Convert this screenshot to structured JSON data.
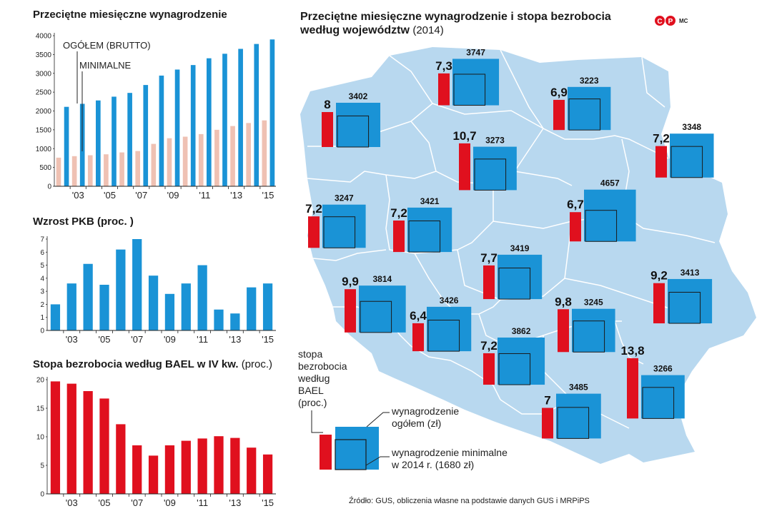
{
  "titles": {
    "wages": "Przeciętne miesięczne wynagrodzenie",
    "gdp": "Wzrost PKB (proc. )",
    "unemp_main": "Stopa bezrobocia według BAEL w IV kw.",
    "unemp_paren": "(proc.)",
    "map_line1": "Przeciętne miesięczne wynagrodzenie i stopa bezrobocia",
    "map_line2": "według województw",
    "map_year": "(2014)"
  },
  "logo": {
    "letters": [
      "C",
      "P"
    ],
    "author": "MC"
  },
  "colors": {
    "blue": "#1a93d6",
    "pink": "#efc1b3",
    "red": "#e0101e",
    "map": "#b8d8ef"
  },
  "annotations": {
    "gross": "OGÓŁEM (BRUTTO)",
    "minimal": "MINIMALNE"
  },
  "legend": {
    "rate": [
      "stopa",
      "bezrobocia",
      "według",
      "BAEL",
      "(proc.)"
    ],
    "gross": [
      "wynagrodzenie",
      "ogółem (zł)"
    ],
    "minimal": [
      "wynagrodzenie minimalne",
      "w 2014 r. (1680 zł)"
    ]
  },
  "source": "Źródło: GUS, obliczenia własne na podstawie danych GUS i MRPiPS",
  "chart_data": [
    {
      "type": "bar",
      "title": "Przeciętne miesięczne wynagrodzenie",
      "categories": [
        "2002",
        "2003",
        "2004",
        "2005",
        "2006",
        "2007",
        "2008",
        "2009",
        "2010",
        "2011",
        "2012",
        "2013",
        "2014",
        "2015"
      ],
      "series": [
        {
          "name": "OGÓŁEM (BRUTTO)",
          "values": [
            2110,
            2190,
            2280,
            2380,
            2480,
            2690,
            2940,
            3100,
            3220,
            3400,
            3520,
            3650,
            3780,
            3900
          ]
        },
        {
          "name": "MINIMALNE",
          "values": [
            760,
            800,
            824,
            849,
            899,
            936,
            1126,
            1276,
            1317,
            1386,
            1500,
            1600,
            1680,
            1750
          ]
        }
      ],
      "ylim": [
        0,
        4000
      ],
      "yticks": [
        "0",
        "500",
        "1000",
        "1500",
        "2000",
        "2500",
        "3000",
        "3500",
        "4000"
      ],
      "xticks": [
        "'03",
        "'05",
        "'07",
        "'09",
        "'11",
        "'13",
        "'15"
      ]
    },
    {
      "type": "bar",
      "title": "Wzrost PKB (proc. )",
      "categories": [
        "2002",
        "2003",
        "2004",
        "2005",
        "2006",
        "2007",
        "2008",
        "2009",
        "2010",
        "2011",
        "2012",
        "2013",
        "2014",
        "2015"
      ],
      "values": [
        2.0,
        3.6,
        5.1,
        3.5,
        6.2,
        7.0,
        4.2,
        2.8,
        3.6,
        5.0,
        1.6,
        1.3,
        3.3,
        3.6
      ],
      "ylim": [
        0,
        7
      ],
      "yticks": [
        "0",
        "1",
        "2",
        "3",
        "4",
        "5",
        "6",
        "7"
      ],
      "xticks": [
        "'03",
        "'05",
        "'07",
        "'09",
        "'11",
        "'13",
        "'15"
      ]
    },
    {
      "type": "bar",
      "title": "Stopa bezrobocia według BAEL w IV kw. (proc.)",
      "categories": [
        "2002",
        "2003",
        "2004",
        "2005",
        "2006",
        "2007",
        "2008",
        "2009",
        "2010",
        "2011",
        "2012",
        "2013",
        "2014",
        "2015"
      ],
      "values": [
        19.7,
        19.3,
        18.0,
        16.7,
        12.2,
        8.5,
        6.7,
        8.5,
        9.3,
        9.7,
        10.1,
        9.8,
        8.1,
        6.9
      ],
      "ylim": [
        0,
        20
      ],
      "yticks": [
        "0",
        "5",
        "10",
        "15",
        "20"
      ],
      "xticks": [
        "'03",
        "'05",
        "'07",
        "'09",
        "'11",
        "'13",
        "'15"
      ]
    },
    {
      "type": "map",
      "title": "Przeciętne miesięczne wynagrodzenie i stopa bezrobocia według województw (2014)",
      "minimal_wage_2014": 1680,
      "regions": [
        {
          "rate": "8",
          "rate_value": 8.0,
          "wage": "3402"
        },
        {
          "rate": "7,3",
          "rate_value": 7.3,
          "wage": "3747"
        },
        {
          "rate": "6,9",
          "rate_value": 6.9,
          "wage": "3223"
        },
        {
          "rate": "10,7",
          "rate_value": 10.7,
          "wage": "3273"
        },
        {
          "rate": "7,2",
          "rate_value": 7.2,
          "wage": "3348"
        },
        {
          "rate": "6,7",
          "rate_value": 6.7,
          "wage": "4657"
        },
        {
          "rate": "7,2",
          "rate_value": 7.2,
          "wage": "3247"
        },
        {
          "rate": "7,2",
          "rate_value": 7.2,
          "wage": "3421"
        },
        {
          "rate": "7,7",
          "rate_value": 7.7,
          "wage": "3419"
        },
        {
          "rate": "9,2",
          "rate_value": 9.2,
          "wage": "3413"
        },
        {
          "rate": "9,9",
          "rate_value": 9.9,
          "wage": "3814"
        },
        {
          "rate": "6,4",
          "rate_value": 6.4,
          "wage": "3426"
        },
        {
          "rate": "9,8",
          "rate_value": 9.8,
          "wage": "3245"
        },
        {
          "rate": "7,2",
          "rate_value": 7.2,
          "wage": "3862"
        },
        {
          "rate": "13,8",
          "rate_value": 13.8,
          "wage": "3266"
        },
        {
          "rate": "7",
          "rate_value": 7.0,
          "wage": "3485"
        }
      ]
    }
  ]
}
